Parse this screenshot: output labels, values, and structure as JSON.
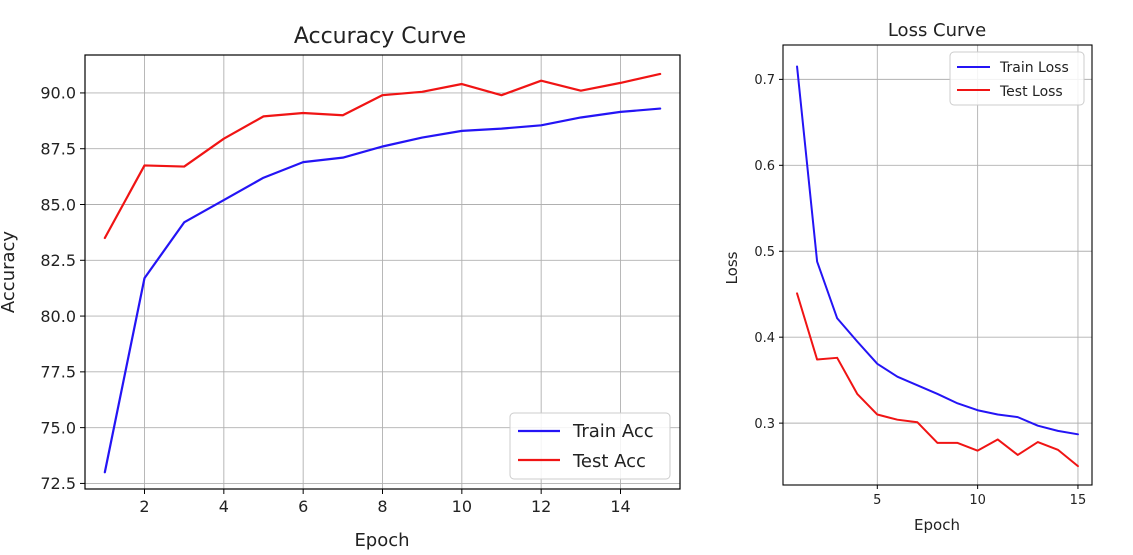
{
  "chart_data": [
    {
      "type": "line",
      "title": "Accuracy Curve",
      "xlabel": "Epoch",
      "ylabel": "Accuracy",
      "x": [
        1,
        2,
        3,
        4,
        5,
        6,
        7,
        8,
        9,
        10,
        11,
        12,
        13,
        14,
        15
      ],
      "xlim": [
        0.5,
        15.5
      ],
      "ylim": [
        72.25,
        91.7
      ],
      "xticks": [
        2,
        4,
        6,
        8,
        10,
        12,
        14
      ],
      "yticks": [
        72.5,
        75.0,
        77.5,
        80.0,
        82.5,
        85.0,
        87.5,
        90.0
      ],
      "ytick_decimals": 1,
      "grid": true,
      "legend_position": "lower-right",
      "series": [
        {
          "name": "Train Acc",
          "color": "#2414f5",
          "values": [
            73.0,
            81.7,
            84.2,
            85.2,
            86.2,
            86.9,
            87.1,
            87.6,
            88.0,
            88.3,
            88.4,
            88.55,
            88.9,
            89.15,
            89.3
          ]
        },
        {
          "name": "Test Acc",
          "color": "#f01414",
          "values": [
            83.5,
            86.75,
            86.7,
            87.95,
            88.95,
            89.1,
            89.0,
            89.9,
            90.05,
            90.4,
            89.9,
            90.55,
            90.1,
            90.45,
            90.85
          ]
        }
      ]
    },
    {
      "type": "line",
      "title": "Loss Curve",
      "xlabel": "Epoch",
      "ylabel": "Loss",
      "x": [
        1,
        2,
        3,
        4,
        5,
        6,
        7,
        8,
        9,
        10,
        11,
        12,
        13,
        14,
        15
      ],
      "xlim": [
        0.3,
        15.7
      ],
      "ylim": [
        0.228,
        0.74
      ],
      "xticks": [
        5,
        10,
        15
      ],
      "yticks": [
        0.3,
        0.4,
        0.5,
        0.6,
        0.7
      ],
      "ytick_decimals": 1,
      "grid": true,
      "legend_position": "upper-right",
      "series": [
        {
          "name": "Train Loss",
          "color": "#2414f5",
          "values": [
            0.715,
            0.488,
            0.422,
            0.395,
            0.369,
            0.354,
            0.344,
            0.334,
            0.323,
            0.315,
            0.31,
            0.307,
            0.297,
            0.291,
            0.287
          ]
        },
        {
          "name": "Test Loss",
          "color": "#f01414",
          "values": [
            0.451,
            0.374,
            0.376,
            0.334,
            0.31,
            0.304,
            0.301,
            0.277,
            0.277,
            0.268,
            0.281,
            0.263,
            0.278,
            0.269,
            0.25
          ]
        }
      ]
    }
  ]
}
